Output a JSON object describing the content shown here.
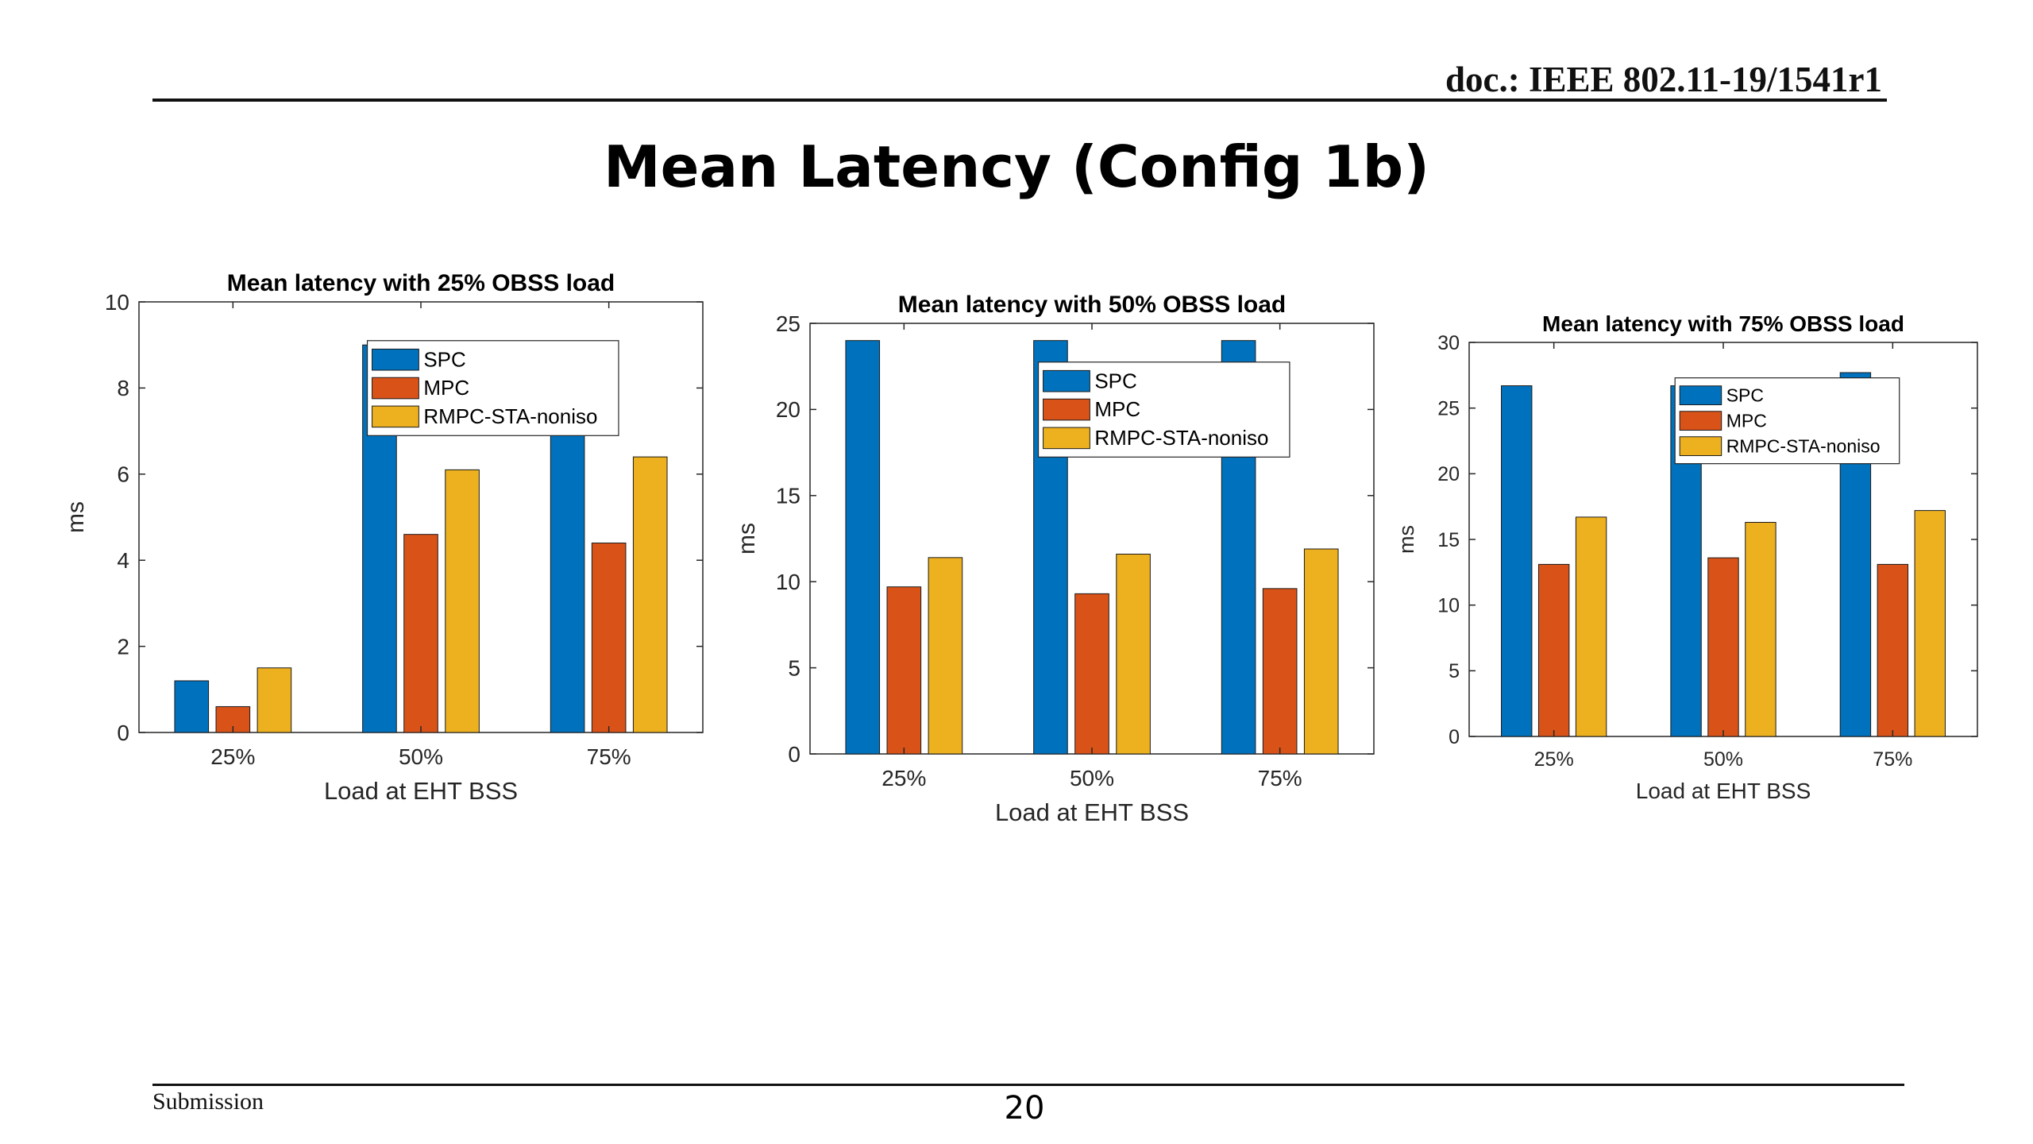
{
  "header": {
    "doc_id": "doc.: IEEE 802.11-19/1541r1"
  },
  "slide": {
    "title": "Mean Latency (Config 1b)"
  },
  "footer": {
    "left": "Submission",
    "page_number": "20"
  },
  "colors": {
    "SPC": "#0072BD",
    "MPC": "#D95319",
    "RMPC-STA-noniso": "#EDB120"
  },
  "chart_data": [
    {
      "type": "bar",
      "title": "Mean latency with 25% OBSS load",
      "xlabel": "Load at EHT BSS",
      "ylabel": "ms",
      "categories": [
        "25%",
        "50%",
        "75%"
      ],
      "ylim": [
        0,
        10
      ],
      "yticks": [
        0,
        2,
        4,
        6,
        8,
        10
      ],
      "legend": "upper-center",
      "series": [
        {
          "name": "SPC",
          "values": [
            1.2,
            9.0,
            9.0
          ]
        },
        {
          "name": "MPC",
          "values": [
            0.6,
            4.6,
            4.4
          ]
        },
        {
          "name": "RMPC-STA-noniso",
          "values": [
            1.5,
            6.1,
            6.4
          ]
        }
      ]
    },
    {
      "type": "bar",
      "title": "Mean latency with 50% OBSS load",
      "xlabel": "Load at EHT BSS",
      "ylabel": "ms",
      "categories": [
        "25%",
        "50%",
        "75%"
      ],
      "ylim": [
        0,
        25
      ],
      "yticks": [
        0,
        5,
        10,
        15,
        20,
        25
      ],
      "legend": "upper-center",
      "series": [
        {
          "name": "SPC",
          "values": [
            24.0,
            24.0,
            24.0
          ]
        },
        {
          "name": "MPC",
          "values": [
            9.7,
            9.3,
            9.6
          ]
        },
        {
          "name": "RMPC-STA-noniso",
          "values": [
            11.4,
            11.6,
            11.9
          ]
        }
      ]
    },
    {
      "type": "bar",
      "title": "Mean latency with 75% OBSS load",
      "xlabel": "Load at EHT BSS",
      "ylabel": "ms",
      "categories": [
        "25%",
        "50%",
        "75%"
      ],
      "ylim": [
        0,
        30
      ],
      "yticks": [
        0,
        5,
        10,
        15,
        20,
        25,
        30
      ],
      "legend": "upper-center",
      "series": [
        {
          "name": "SPC",
          "values": [
            26.7,
            26.7,
            27.7
          ]
        },
        {
          "name": "MPC",
          "values": [
            13.1,
            13.6,
            13.1
          ]
        },
        {
          "name": "RMPC-STA-noniso",
          "values": [
            16.7,
            16.3,
            17.2
          ]
        }
      ]
    }
  ]
}
